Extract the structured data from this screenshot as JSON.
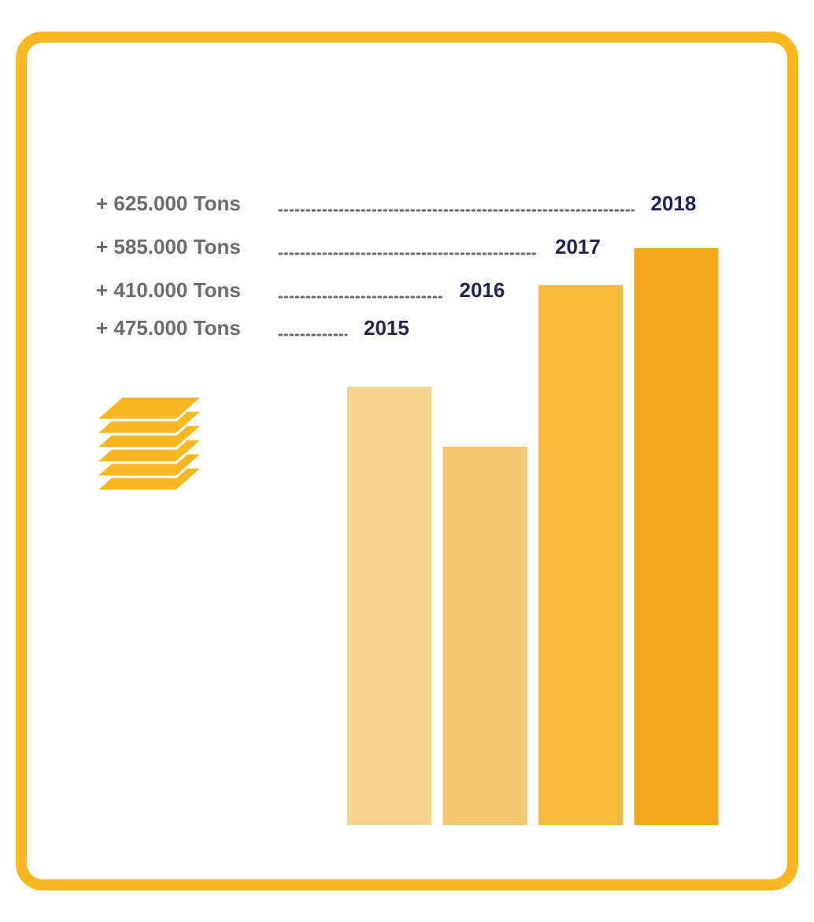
{
  "chart_data": {
    "type": "bar",
    "categories": [
      "2015",
      "2016",
      "2017",
      "2018"
    ],
    "values": [
      475000,
      410000,
      585000,
      625000
    ],
    "value_labels": [
      "+ 475.000 Tons",
      "+ 410.000 Tons",
      "+ 585.000 Tons",
      "+ 625.000 Tons"
    ],
    "unit": "Tons",
    "ylim": [
      0,
      625000
    ],
    "grid": false,
    "legend": "none"
  },
  "colors": {
    "frame": "#F8B822",
    "bars": [
      "#F6D48F",
      "#F3C76E",
      "#F7B83C",
      "#F3A819"
    ],
    "label_text": "#6b6b6b",
    "year_text": "#22244f",
    "icon": "#F8B822"
  },
  "icon": "stacked-sheets-icon"
}
